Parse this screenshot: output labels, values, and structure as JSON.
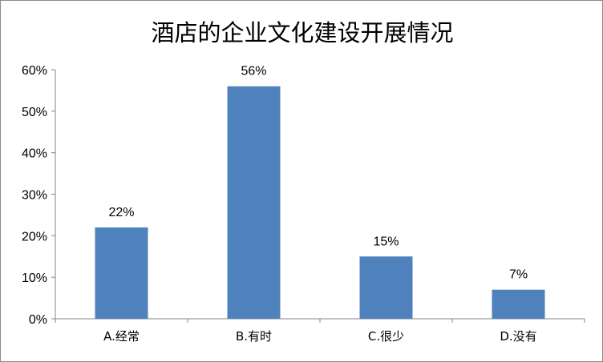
{
  "chart_data": {
    "type": "bar",
    "title": "酒店的企业文化建设开展情况",
    "categories": [
      "A.经常",
      "B.有时",
      "C.很少",
      "D.没有"
    ],
    "values": [
      22,
      56,
      15,
      7
    ],
    "data_labels": [
      "22%",
      "56%",
      "15%",
      "7%"
    ],
    "ylim": [
      0,
      60
    ],
    "yticks": [
      0,
      10,
      20,
      30,
      40,
      50,
      60
    ],
    "ytick_labels": [
      "0%",
      "10%",
      "20%",
      "30%",
      "40%",
      "50%",
      "60%"
    ],
    "xlabel": "",
    "ylabel": "",
    "bar_color": "#4f81bd",
    "grid": false,
    "legend": "none"
  }
}
